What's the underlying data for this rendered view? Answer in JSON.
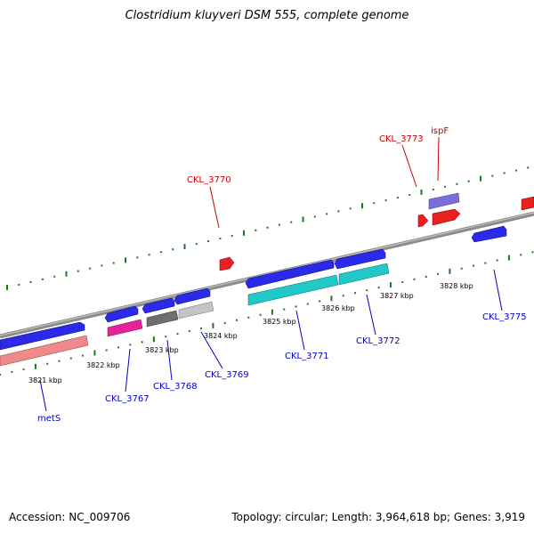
{
  "title": "Clostridium kluyveri DSM 555, complete genome",
  "footer": {
    "accession": "Accession: NC_009706",
    "topology": "Topology: circular; Length: 3,964,618 bp; Genes: 3,919"
  },
  "colors": {
    "backbone": "#8a8a8a",
    "tick": "#1a7a1a",
    "label_blue": "#0000cc",
    "label_red": "#cc0000"
  },
  "scale": {
    "ticks": [
      {
        "label": "3821 kbp"
      },
      {
        "label": "3822 kbp"
      },
      {
        "label": "3823 kbp"
      },
      {
        "label": "3824 kbp"
      },
      {
        "label": "3825 kbp"
      },
      {
        "label": "3826 kbp"
      },
      {
        "label": "3827 kbp"
      },
      {
        "label": "3828 kbp"
      }
    ]
  },
  "genes": [
    {
      "name": "metS",
      "color": "label_blue"
    },
    {
      "name": "CKL_3767",
      "color": "label_blue"
    },
    {
      "name": "CKL_3768",
      "color": "label_blue"
    },
    {
      "name": "CKL_3769",
      "color": "label_blue"
    },
    {
      "name": "CKL_3770",
      "color": "label_red"
    },
    {
      "name": "CKL_3771",
      "color": "label_blue"
    },
    {
      "name": "CKL_3772",
      "color": "label_blue"
    },
    {
      "name": "CKL_3773",
      "color": "label_red"
    },
    {
      "name": "ispF",
      "color": "label_red"
    },
    {
      "name": "CKL_3775",
      "color": "label_blue"
    }
  ]
}
